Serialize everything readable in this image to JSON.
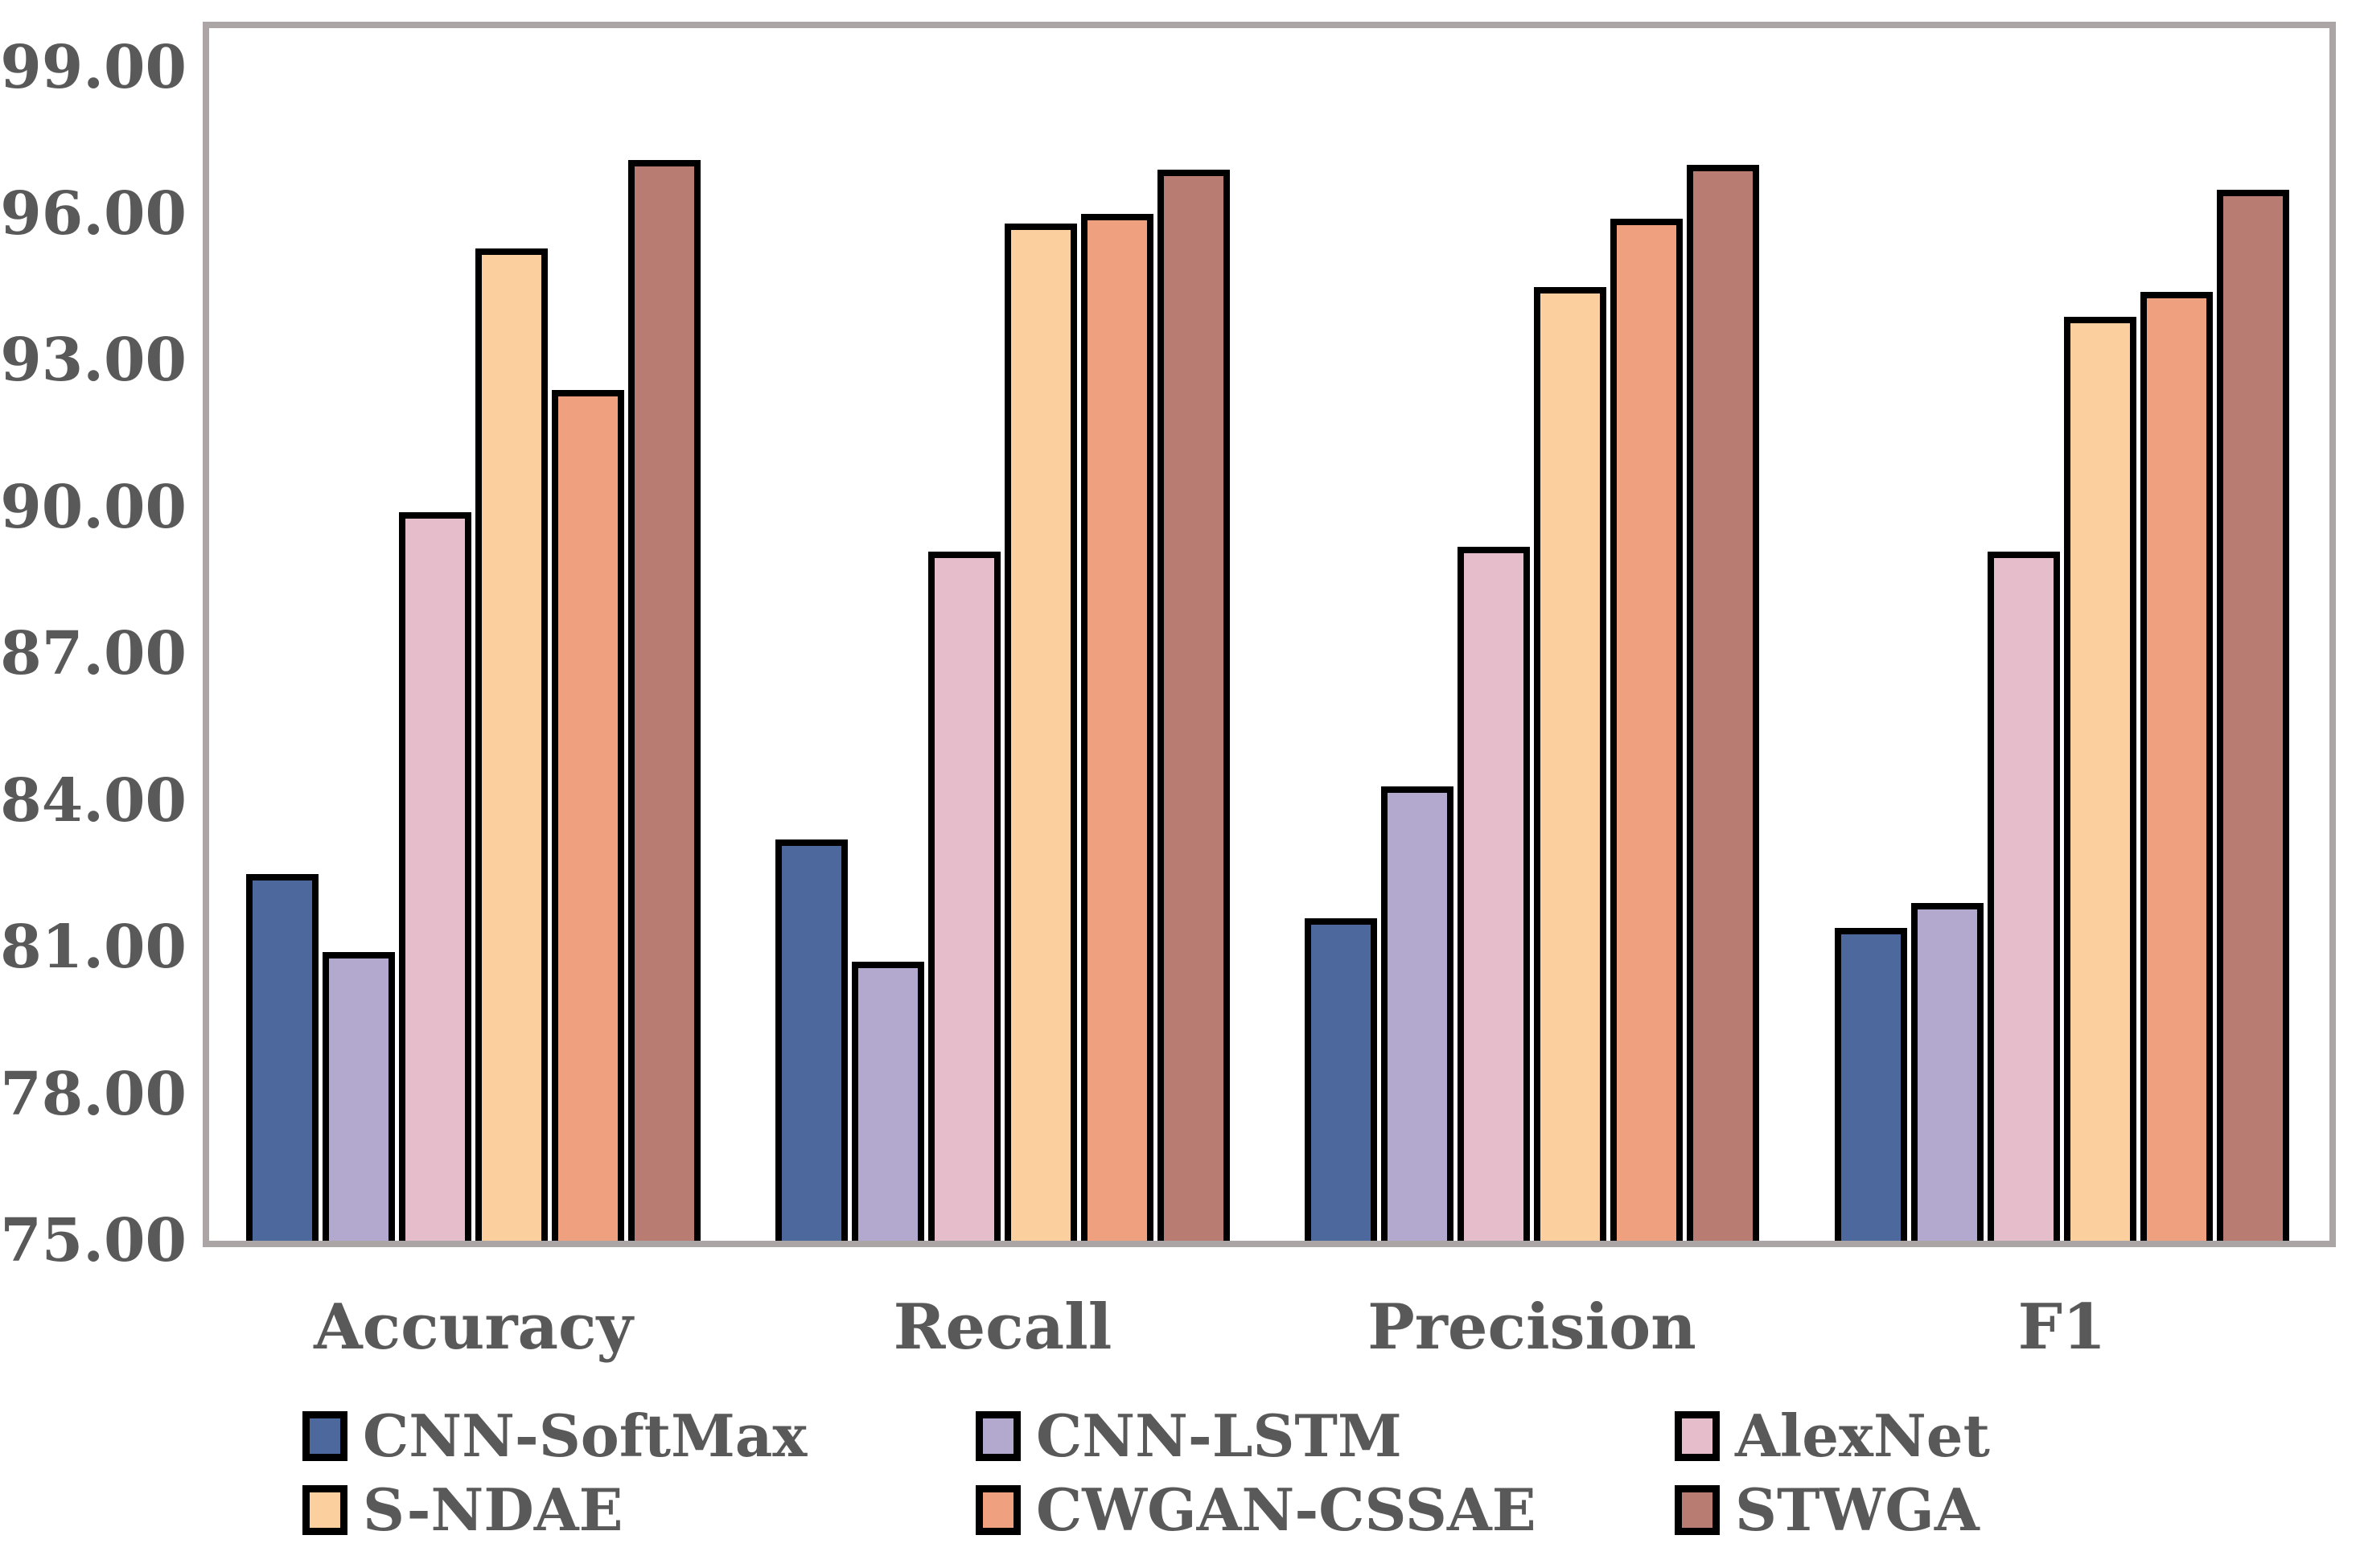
{
  "chart_data": {
    "type": "bar",
    "title": "",
    "xlabel": "",
    "ylabel": "",
    "categories": [
      "Accuracy",
      "Recall",
      "Precision",
      "F1"
    ],
    "series": [
      {
        "name": "CNN-SoftMax",
        "color": "#4D689C",
        "values": [
          82.5,
          83.2,
          81.6,
          81.4
        ]
      },
      {
        "name": "CNN-LSTM",
        "color": "#B3A8CE",
        "values": [
          80.9,
          80.7,
          84.3,
          81.9
        ]
      },
      {
        "name": "AlexNet",
        "color": "#E6BECB",
        "values": [
          89.9,
          89.1,
          89.2,
          89.1
        ]
      },
      {
        "name": "S-NDAE",
        "color": "#FCCF9E",
        "values": [
          95.3,
          95.8,
          94.5,
          93.9
        ]
      },
      {
        "name": "CWGAN-CSSAE",
        "color": "#EFA17F",
        "values": [
          92.4,
          96.0,
          95.9,
          94.4
        ]
      },
      {
        "name": "STWGA",
        "color": "#B87C73",
        "values": [
          97.1,
          96.9,
          97.0,
          96.5
        ]
      }
    ],
    "ylim": [
      75,
      99.8
    ],
    "yticks": [
      99.0,
      96.0,
      93.0,
      90.0,
      87.0,
      84.0,
      81.0,
      78.0,
      75.0
    ],
    "ytick_labels": [
      "99.00",
      "96.00",
      "93.00",
      "90.00",
      "87.00",
      "84.00",
      "81.00",
      "78.00",
      "75.00"
    ],
    "grid": false,
    "legend_position": "bottom",
    "bar_outline_color": "#000000",
    "frame_color": "#ABA5A5",
    "text_color": "#595959"
  }
}
